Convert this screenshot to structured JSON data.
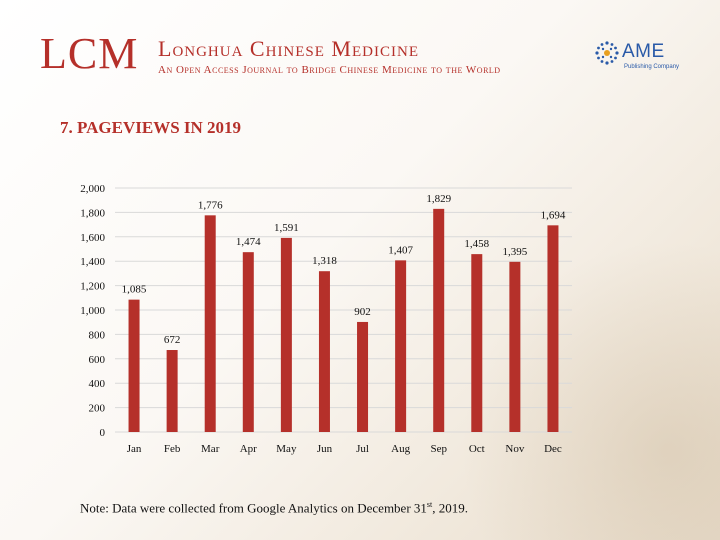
{
  "header": {
    "logo": "LCM",
    "journal_title": "Longhua Chinese Medicine",
    "journal_subtitle": "An Open Access Journal to Bridge Chinese Medicine to the World",
    "publisher_name": "AME",
    "publisher_sub": "Publishing Company",
    "brand_color": "#b5302a",
    "publisher_color": "#2a5aa8"
  },
  "section_title": "7. PAGEVIEWS IN 2019",
  "note": {
    "prefix": "Note: Data were collected from Google Analytics on December 31",
    "superscript": "st",
    "suffix": ", 2019."
  },
  "chart_data": {
    "type": "bar",
    "categories": [
      "Jan",
      "Feb",
      "Mar",
      "Apr",
      "May",
      "Jun",
      "Jul",
      "Aug",
      "Sep",
      "Oct",
      "Nov",
      "Dec"
    ],
    "values": [
      1085,
      672,
      1776,
      1474,
      1591,
      1318,
      902,
      1407,
      1829,
      1458,
      1395,
      1694
    ],
    "data_labels": [
      "1,085",
      "672",
      "1,776",
      "1,474",
      "1,591",
      "1,318",
      "902",
      "1,407",
      "1,829",
      "1,458",
      "1,395",
      "1,694"
    ],
    "ylim": [
      0,
      2000
    ],
    "yticks": [
      0,
      200,
      400,
      600,
      800,
      1000,
      1200,
      1400,
      1600,
      1800,
      2000
    ],
    "ytick_labels": [
      "0",
      "200",
      "400",
      "600",
      "800",
      "1,000",
      "1,200",
      "1,400",
      "1,600",
      "1,800",
      "2,000"
    ],
    "grid": true,
    "bar_color": "#b5302a",
    "title": "",
    "xlabel": "",
    "ylabel": ""
  }
}
